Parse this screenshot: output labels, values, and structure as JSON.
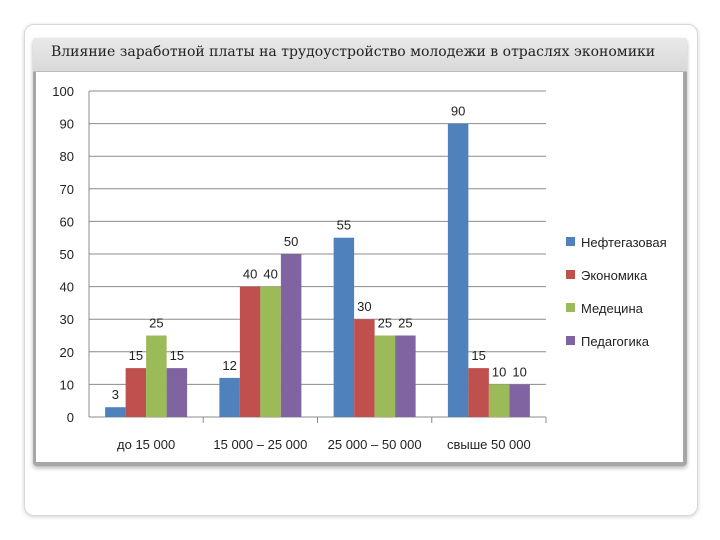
{
  "slide_title": "Влияние заработной платы на трудоустройство молодежи в отраслях экономики",
  "chart_data": {
    "type": "bar",
    "title": "",
    "xlabel": "",
    "ylabel": "",
    "ylim": [
      0,
      100
    ],
    "yticks": [
      0,
      10,
      20,
      30,
      40,
      50,
      60,
      70,
      80,
      90,
      100
    ],
    "grid": true,
    "legend_position": "right",
    "categories": [
      "до 15 000",
      "15 000 – 25 000",
      "25 000 – 50 000",
      "свыше 50 000"
    ],
    "series": [
      {
        "name": "Нефтегазовая",
        "color": "#4f81bd",
        "values": [
          3,
          12,
          55,
          90
        ]
      },
      {
        "name": "Экономика",
        "color": "#c0504d",
        "values": [
          15,
          40,
          30,
          15
        ]
      },
      {
        "name": "Медецина",
        "color": "#9bbb59",
        "values": [
          25,
          40,
          25,
          10
        ]
      },
      {
        "name": "Педагогика",
        "color": "#8064a2",
        "values": [
          15,
          50,
          25,
          10
        ]
      }
    ]
  }
}
